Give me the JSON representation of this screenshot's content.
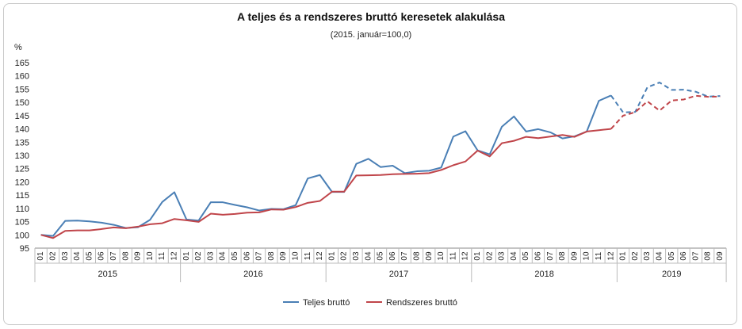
{
  "chart_data": {
    "type": "line",
    "title": "A teljes és a rendszeres bruttó keresetek alakulása",
    "subtitle": "(2015. január=100,0)",
    "ylabel": "%",
    "ylim": [
      95,
      165
    ],
    "yticks": [
      95,
      100,
      105,
      110,
      115,
      120,
      125,
      130,
      135,
      140,
      145,
      150,
      155,
      160,
      165
    ],
    "grid": false,
    "legend_position": "bottom",
    "month_labels": [
      "01",
      "02",
      "03",
      "04",
      "05",
      "06",
      "07",
      "08",
      "09",
      "10",
      "11",
      "12"
    ],
    "years": [
      "2015",
      "2016",
      "2017",
      "2018",
      "2019"
    ],
    "year_months": [
      12,
      12,
      12,
      12,
      9
    ],
    "dashed_from_index": 47,
    "series": [
      {
        "name": "Teljes bruttó",
        "color": "#4a7fb5",
        "values": [
          100.0,
          99.6,
          105.3,
          105.4,
          105.1,
          104.6,
          103.8,
          102.6,
          102.9,
          105.7,
          112.4,
          116.1,
          105.8,
          105.4,
          112.3,
          112.3,
          111.3,
          110.4,
          109.2,
          109.8,
          109.7,
          111.2,
          121.3,
          122.6,
          116.2,
          116.2,
          126.8,
          128.7,
          125.6,
          126.1,
          123.3,
          124.0,
          124.2,
          125.4,
          137.1,
          139.1,
          131.9,
          130.4,
          140.8,
          144.7,
          139.0,
          139.9,
          138.7,
          136.4,
          137.2,
          139.0,
          150.6,
          152.6,
          146.2,
          146.4,
          155.7,
          157.5,
          154.7,
          154.8,
          154.0,
          152.2,
          152.4
        ]
      },
      {
        "name": "Rendszeres bruttó",
        "color": "#c0454a",
        "values": [
          100.0,
          98.8,
          101.5,
          101.7,
          101.7,
          102.2,
          102.8,
          102.5,
          103.1,
          104.0,
          104.4,
          106.0,
          105.5,
          104.9,
          108.0,
          107.6,
          107.9,
          108.4,
          108.5,
          109.6,
          109.5,
          110.5,
          112.1,
          112.8,
          116.3,
          116.3,
          122.4,
          122.5,
          122.6,
          122.9,
          123.0,
          123.1,
          123.3,
          124.5,
          126.3,
          127.7,
          131.8,
          129.6,
          134.6,
          135.5,
          137.0,
          136.5,
          137.1,
          137.7,
          137.0,
          139.0,
          139.5,
          140.0,
          145.0,
          146.3,
          150.4,
          146.9,
          150.7,
          151.1,
          152.5,
          152.1,
          152.2
        ]
      }
    ]
  }
}
